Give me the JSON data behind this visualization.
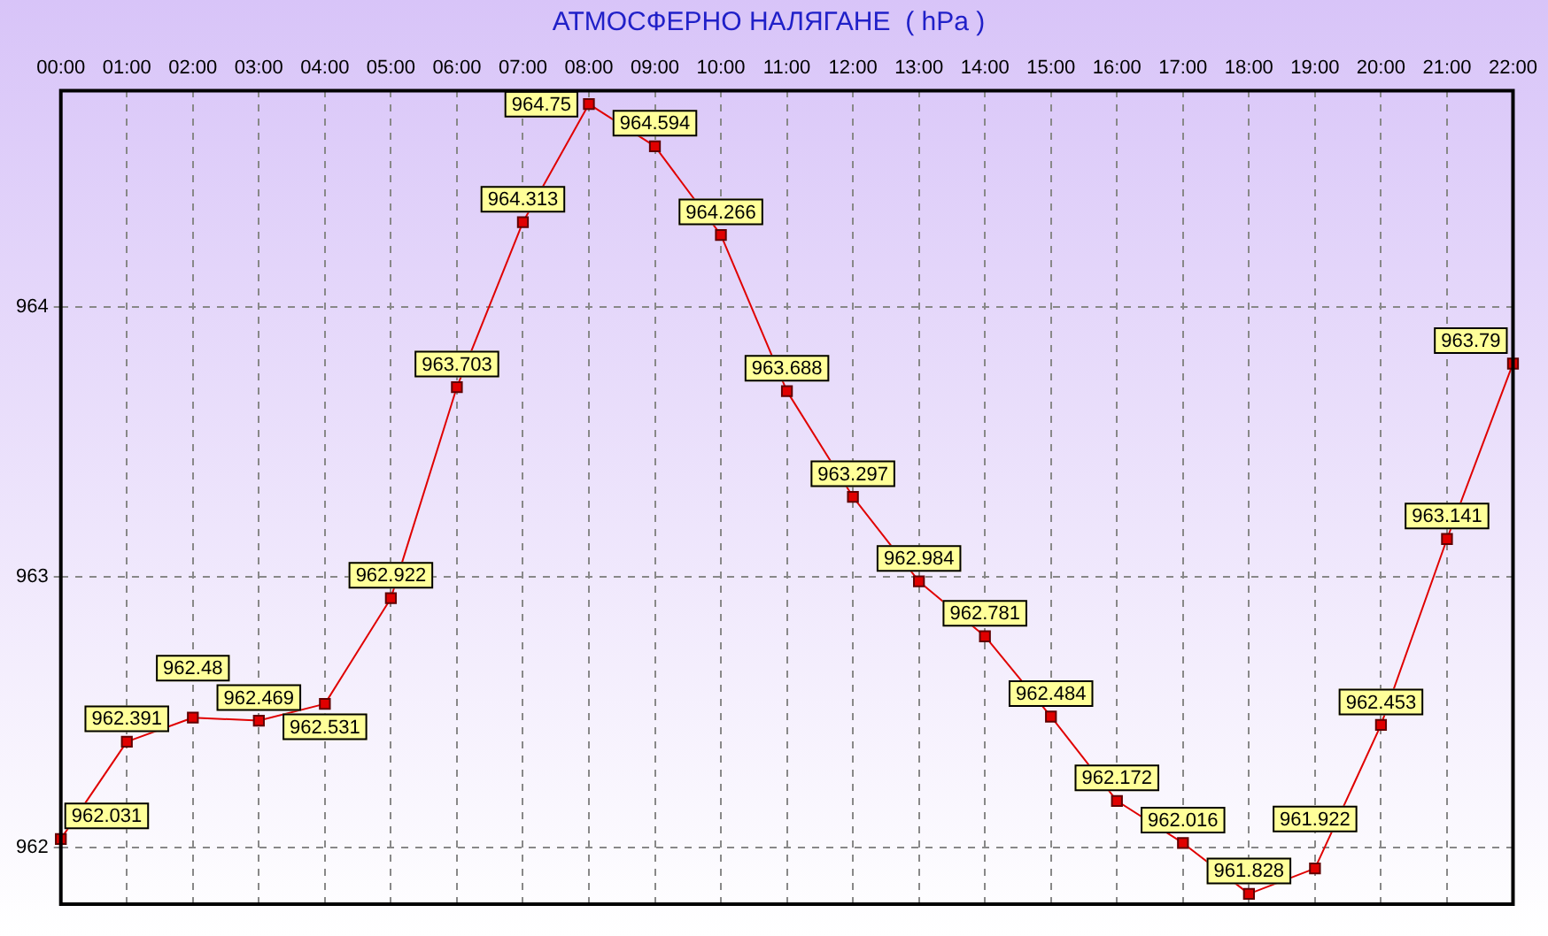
{
  "chart_data": {
    "type": "line",
    "title": "АТМОСФЕРНО НАЛЯГАНЕ  ( hPa )",
    "categories": [
      "00:00",
      "01:00",
      "02:00",
      "03:00",
      "04:00",
      "05:00",
      "06:00",
      "07:00",
      "08:00",
      "09:00",
      "10:00",
      "11:00",
      "12:00",
      "13:00",
      "14:00",
      "15:00",
      "16:00",
      "17:00",
      "18:00",
      "19:00",
      "20:00",
      "21:00",
      "22:00"
    ],
    "series": [
      {
        "color": "#e00000",
        "values": [
          962.031,
          962.391,
          962.48,
          962.469,
          962.531,
          962.922,
          963.703,
          964.313,
          964.75,
          964.594,
          964.266,
          963.688,
          963.297,
          962.984,
          962.781,
          962.484,
          962.172,
          962.016,
          961.828,
          961.922,
          962.453,
          963.141,
          963.79
        ]
      }
    ],
    "ylim": [
      961.79,
      964.8
    ],
    "yticks": [
      962,
      963,
      964
    ],
    "grid": true,
    "legend": false,
    "marker": "square",
    "line_style": "solid",
    "data_labels": true
  }
}
